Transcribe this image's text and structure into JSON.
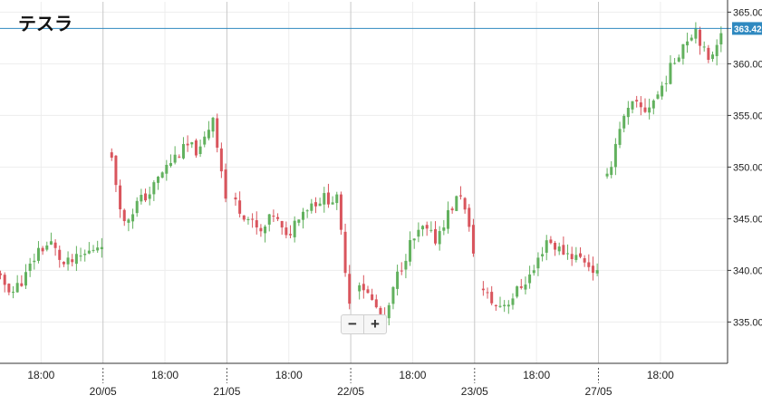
{
  "chart_data": {
    "type": "candlestick",
    "title": "テスラ",
    "current_price": 363.42,
    "current_price_label": "363.42",
    "ylim": [
      331,
      366
    ],
    "y_ticks": [
      "335.00",
      "340.00",
      "345.00",
      "350.00",
      "355.00",
      "360.00",
      "365.00"
    ],
    "x_ticks": [
      {
        "label": "18:00",
        "day": 0.5
      },
      {
        "label": "20/05",
        "day": 1
      },
      {
        "label": "18:00",
        "day": 1.5
      },
      {
        "label": "21/05",
        "day": 2
      },
      {
        "label": "18:00",
        "day": 2.5
      },
      {
        "label": "22/05",
        "day": 3
      },
      {
        "label": "18:00",
        "day": 3.5
      },
      {
        "label": "23/05",
        "day": 4
      },
      {
        "label": "18:00",
        "day": 4.5
      },
      {
        "label": "27/05",
        "day": 5
      },
      {
        "label": "18:00",
        "day": 5.5
      }
    ],
    "candles_per_session": [
      28,
      28,
      28,
      28,
      28,
      28
    ],
    "sessions": [
      {
        "close_path": [
          340.0,
          339.0,
          338.0,
          339.5,
          342.0,
          342.6,
          340.5,
          341.0,
          341.8,
          342.8
        ]
      },
      {
        "close_path": [
          350.5,
          344.5,
          346.5,
          347.5,
          349.5,
          351.0,
          352.0,
          351.5,
          355.0,
          347.0
        ]
      },
      {
        "close_path": [
          346.5,
          345.0,
          343.5,
          345.5,
          343.0,
          345.5,
          346.5,
          347.0,
          346.8,
          337.0
        ]
      },
      {
        "close_path": [
          339.0,
          337.0,
          335.0,
          339.5,
          342.5,
          344.0,
          343.0,
          345.5,
          347.5,
          342.0
        ]
      },
      {
        "close_path": [
          338.0,
          336.5,
          337.0,
          338.5,
          340.0,
          343.0,
          342.0,
          341.5,
          341.0,
          339.6
        ]
      },
      {
        "close_path": [
          348.8,
          354.0,
          356.0,
          355.5,
          357.0,
          359.5,
          362.0,
          363.5,
          360.0,
          363.4
        ]
      }
    ]
  }
}
